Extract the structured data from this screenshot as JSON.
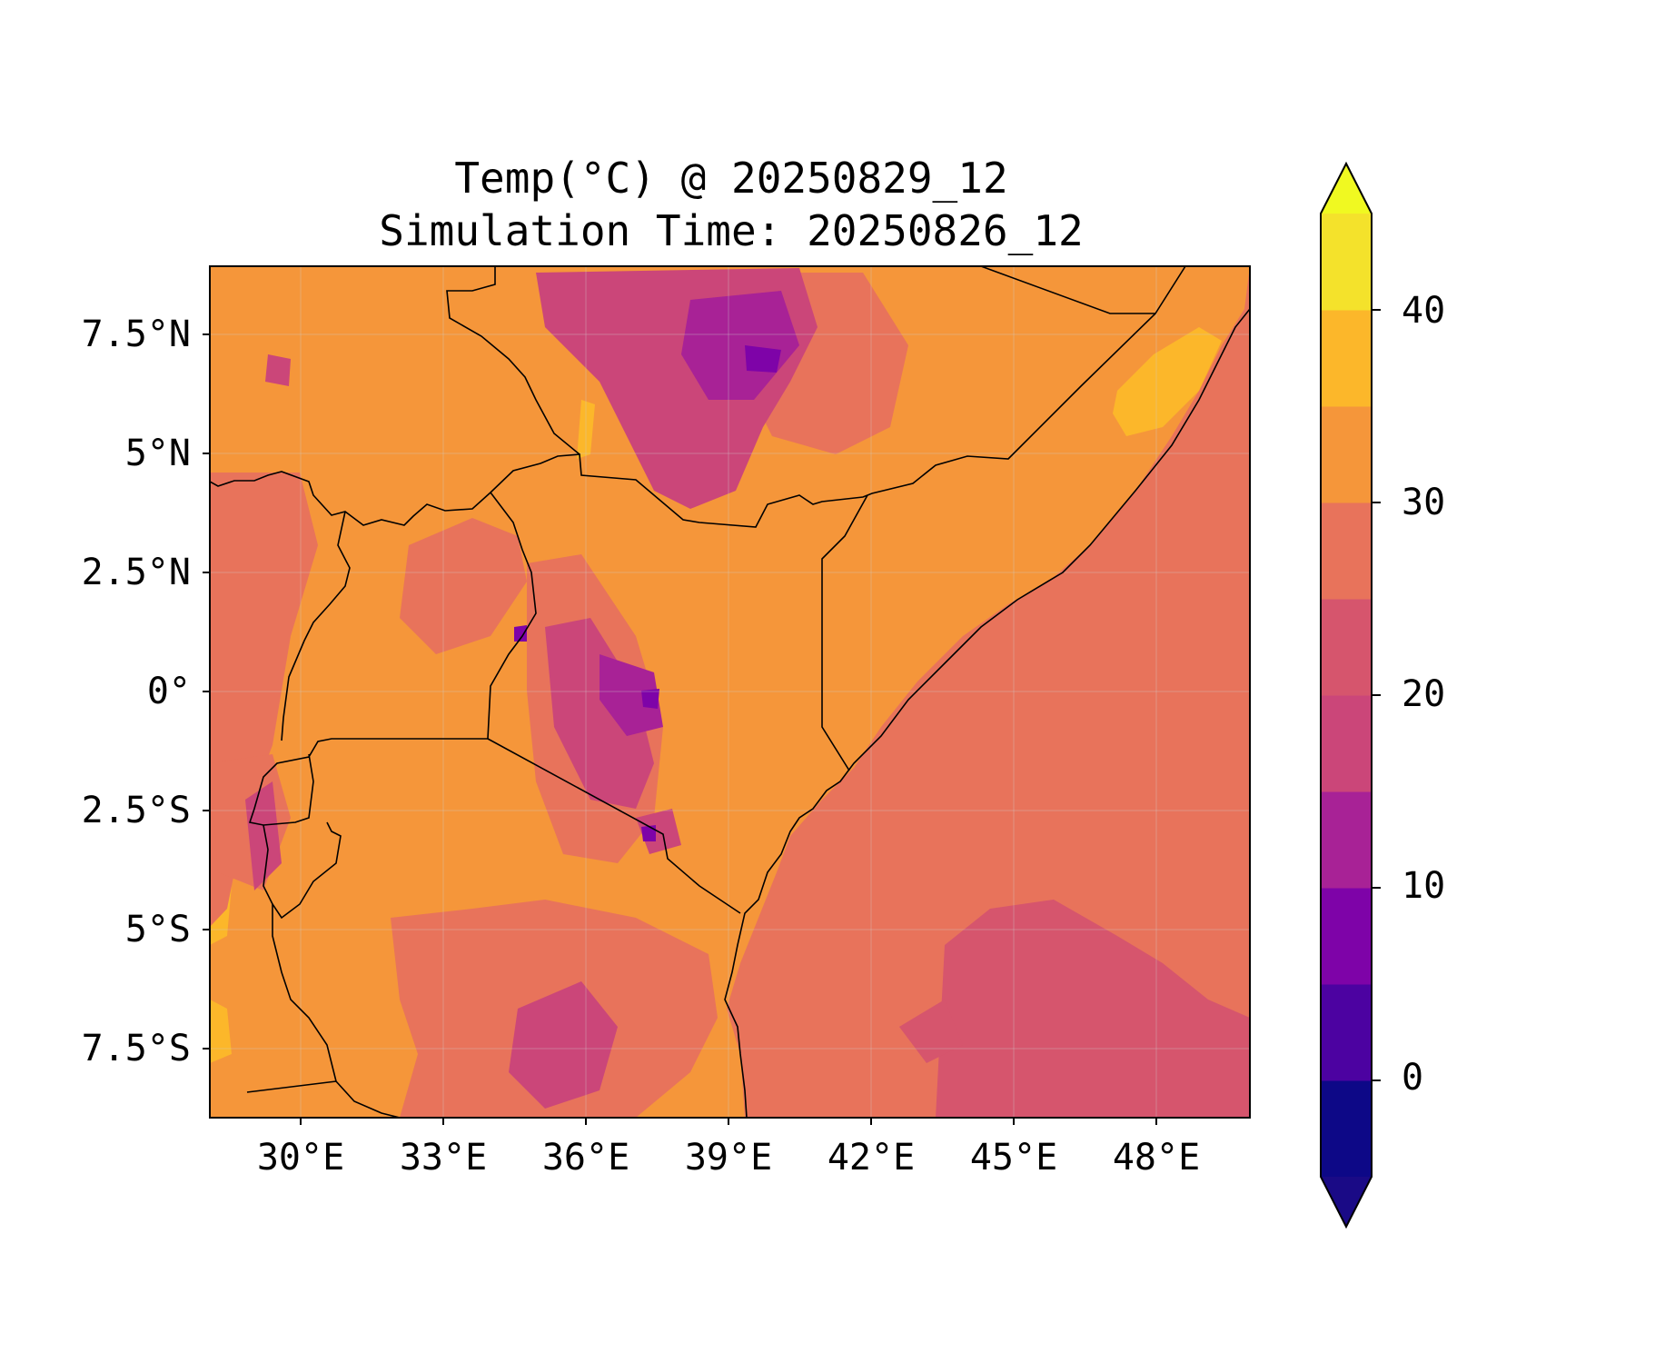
{
  "title": {
    "line1": "Temp(°C) @ 20250829_12",
    "line2": "Simulation Time: 20250826_12"
  },
  "map": {
    "lat_ticks": [
      "7.5°N",
      "5°N",
      "2.5°N",
      "0°",
      "2.5°S",
      "5°S",
      "7.5°S"
    ],
    "lon_ticks": [
      "30°E",
      "33°E",
      "36°E",
      "39°E",
      "42°E",
      "45°E",
      "48°E"
    ],
    "extent": {
      "lon_min": 28.1,
      "lon_max": 50.0,
      "lat_min": -9.0,
      "lat_max": 8.9
    },
    "variable": "temperature (°C)",
    "features": [
      "country borders",
      "coastline",
      "gridlines"
    ]
  },
  "colorbar": {
    "ticks": [
      "0",
      "10",
      "20",
      "30",
      "40"
    ],
    "levels": [
      -5,
      0,
      5,
      10,
      15,
      20,
      25,
      30,
      35,
      40,
      45
    ],
    "extend": "both",
    "colormap": "plasma",
    "colors": [
      "#1a0a86",
      "#0d0887",
      "#4c02a1",
      "#7e03a8",
      "#a82296",
      "#cb4679",
      "#d6556d",
      "#e8735b",
      "#f5963a",
      "#fcb72a",
      "#f4e22b",
      "#f0f921"
    ]
  },
  "field_colors": {
    "ocean": "#e8735b",
    "ocean_cool": "#d6556d",
    "land": "#f5963a",
    "warm": "#fcb72a",
    "highland": "#cb4679",
    "mountain": "#a82296",
    "peak": "#7e03a8"
  }
}
